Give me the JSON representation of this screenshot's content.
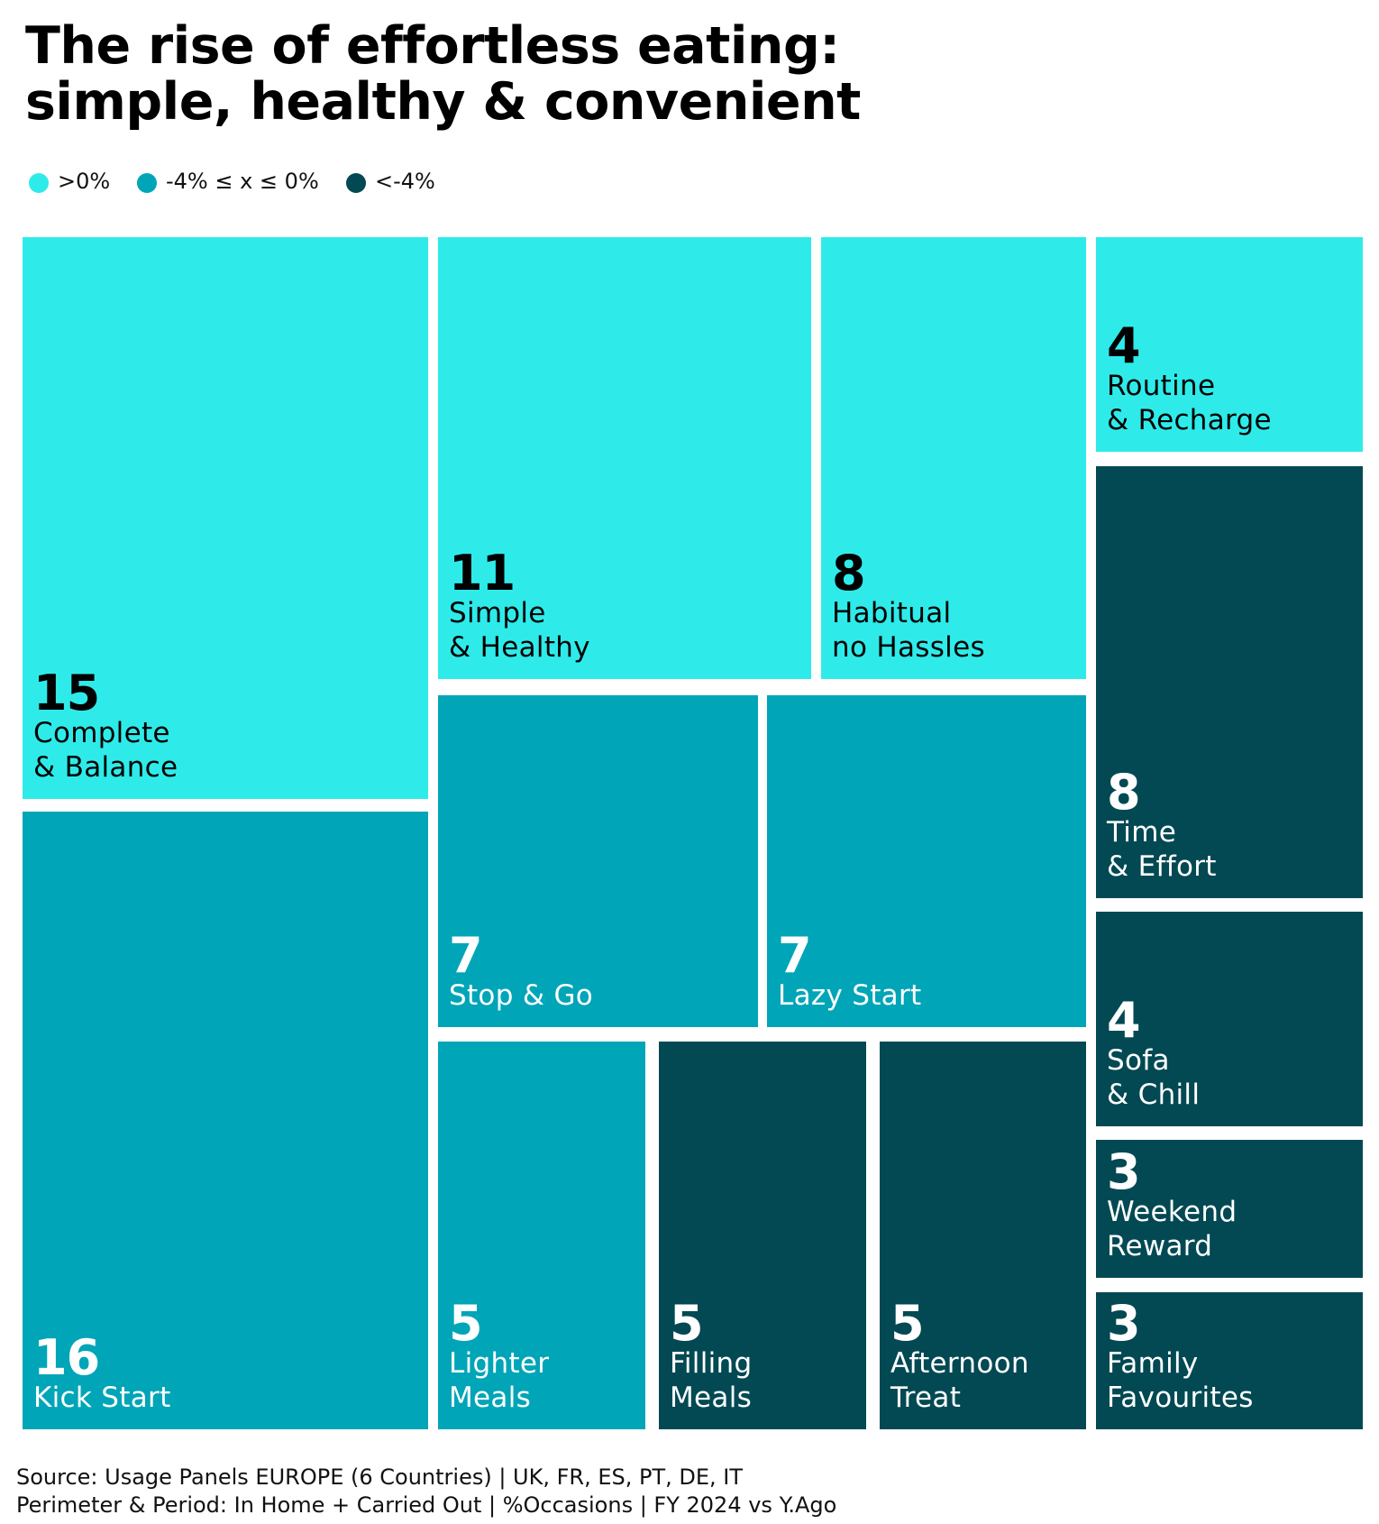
{
  "title": {
    "line1": "The rise of effortless eating:",
    "line2": "simple, healthy & convenient"
  },
  "legend": [
    {
      "label": ">0%",
      "color": "#2eebea"
    },
    {
      "label": "-4% ≤ x ≤  0%",
      "color": "#00a5b7"
    },
    {
      "label": "<-4%",
      "color": "#024953"
    }
  ],
  "chart_data": {
    "type": "treemap",
    "unit": "%Occasions",
    "categories": [
      "Kick Start",
      "Complete & Balance",
      "Simple & Healthy",
      "Habitual no Hassles",
      "Time & Effort",
      "Stop & Go",
      "Lazy Start",
      "Lighter Meals",
      "Filling Meals",
      "Afternoon Treat",
      "Routine & Recharge",
      "Sofa & Chill",
      "Weekend Reward",
      "Family Favourites"
    ],
    "values": [
      16,
      15,
      11,
      8,
      8,
      7,
      7,
      5,
      5,
      5,
      4,
      4,
      3,
      3
    ],
    "groups": [
      ">0%",
      "-4% ≤ x ≤  0%",
      "<-4%"
    ],
    "tiles": [
      {
        "value": "15",
        "label": "Complete\n& Balance",
        "group": 0
      },
      {
        "value": "16",
        "label": "Kick Start",
        "group": 1
      },
      {
        "value": "11",
        "label": "Simple\n& Healthy",
        "group": 0
      },
      {
        "value": "8",
        "label": "Habitual\nno Hassles",
        "group": 0
      },
      {
        "value": "7",
        "label": "Stop & Go",
        "group": 1
      },
      {
        "value": "7",
        "label": "Lazy Start",
        "group": 1
      },
      {
        "value": "5",
        "label": "Lighter\nMeals",
        "group": 1
      },
      {
        "value": "5",
        "label": "Filling\nMeals",
        "group": 2
      },
      {
        "value": "5",
        "label": "Afternoon\nTreat",
        "group": 2
      },
      {
        "value": "4",
        "label": "Routine\n& Recharge",
        "group": 0
      },
      {
        "value": "8",
        "label": "Time\n& Effort",
        "group": 2
      },
      {
        "value": "4",
        "label": "Sofa\n& Chill",
        "group": 2
      },
      {
        "value": "3",
        "label": "Weekend\nReward",
        "group": 2
      },
      {
        "value": "3",
        "label": "Family\nFavourites",
        "group": 2
      }
    ]
  },
  "source": {
    "line1": "Source: Usage Panels EUROPE (6 Countries) | UK, FR, ES, PT, DE, IT",
    "line2": "Perimeter & Period: In Home + Carried Out | %Occasions | FY 2024 vs Y.Ago"
  }
}
